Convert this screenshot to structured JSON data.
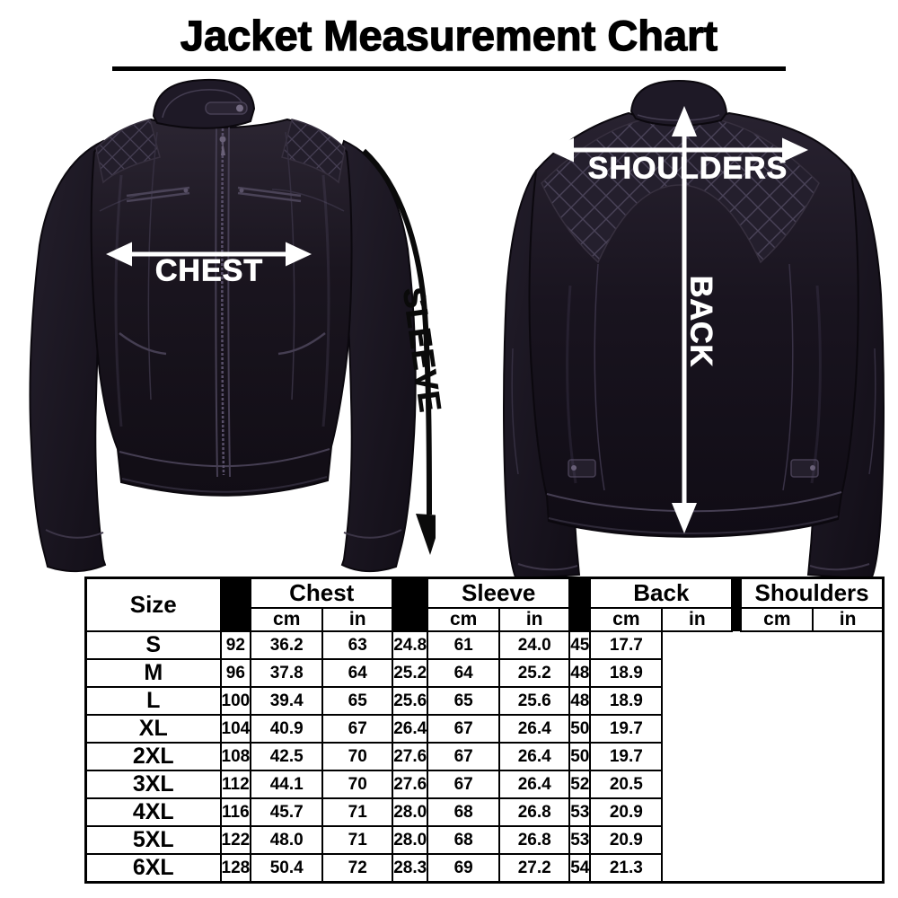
{
  "title": "Jacket Measurement Chart",
  "front_view": {
    "name": "jacket front view",
    "labels": {
      "chest": "CHEST",
      "sleeve": "SLEEVE"
    }
  },
  "back_view": {
    "name": "jacket back view",
    "labels": {
      "shoulders": "SHOULDERS",
      "back": "BACK"
    }
  },
  "colors": {
    "jacket_black": "#17131c",
    "arrow_white": "#ffffff",
    "arrow_black": "#0a0a0a",
    "text_black": "#000000",
    "background": "#ffffff"
  },
  "size_chart": {
    "size_header": "Size",
    "groups": [
      {
        "label": "Chest",
        "units": [
          "cm",
          "in"
        ]
      },
      {
        "label": "Sleeve",
        "units": [
          "cm",
          "in"
        ]
      },
      {
        "label": "Back",
        "units": [
          "cm",
          "in"
        ]
      },
      {
        "label": "Shoulders",
        "units": [
          "cm",
          "in"
        ]
      }
    ],
    "rows": [
      {
        "size": "S",
        "values": [
          "92",
          "36.2",
          "63",
          "24.8",
          "61",
          "24.0",
          "45",
          "17.7"
        ]
      },
      {
        "size": "M",
        "values": [
          "96",
          "37.8",
          "64",
          "25.2",
          "64",
          "25.2",
          "48",
          "18.9"
        ]
      },
      {
        "size": "L",
        "values": [
          "100",
          "39.4",
          "65",
          "25.6",
          "65",
          "25.6",
          "48",
          "18.9"
        ]
      },
      {
        "size": "XL",
        "values": [
          "104",
          "40.9",
          "67",
          "26.4",
          "67",
          "26.4",
          "50",
          "19.7"
        ]
      },
      {
        "size": "2XL",
        "values": [
          "108",
          "42.5",
          "70",
          "27.6",
          "67",
          "26.4",
          "50",
          "19.7"
        ]
      },
      {
        "size": "3XL",
        "values": [
          "112",
          "44.1",
          "70",
          "27.6",
          "67",
          "26.4",
          "52",
          "20.5"
        ]
      },
      {
        "size": "4XL",
        "values": [
          "116",
          "45.7",
          "71",
          "28.0",
          "68",
          "26.8",
          "53",
          "20.9"
        ]
      },
      {
        "size": "5XL",
        "values": [
          "122",
          "48.0",
          "71",
          "28.0",
          "68",
          "26.8",
          "53",
          "20.9"
        ]
      },
      {
        "size": "6XL",
        "values": [
          "128",
          "50.4",
          "72",
          "28.3",
          "69",
          "27.2",
          "54",
          "21.3"
        ]
      }
    ]
  }
}
